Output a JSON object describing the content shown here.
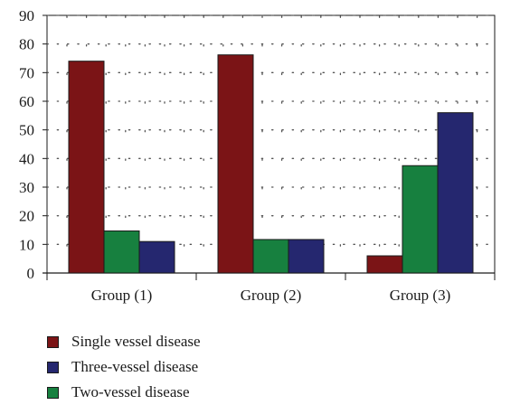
{
  "chart_data": {
    "type": "bar",
    "categories": [
      "Group (1)",
      "Group (2)",
      "Group (3)"
    ],
    "series": [
      {
        "name": "Single vessel disease",
        "color": "#7b1416",
        "values": [
          74,
          76.2,
          6
        ]
      },
      {
        "name": "Two-vessel disease",
        "color": "#17803f",
        "values": [
          14.7,
          11.7,
          37.5
        ]
      },
      {
        "name": "Three-vessel disease",
        "color": "#25276f",
        "values": [
          11,
          11.7,
          56
        ]
      }
    ],
    "yticks": [
      0,
      10,
      20,
      30,
      40,
      50,
      60,
      70,
      80,
      90
    ],
    "ylim": [
      0,
      90
    ],
    "grid": "dotted",
    "legend": {
      "position": "bottom-left",
      "entries": [
        {
          "label": "Single vessel disease",
          "color": "#7b1416"
        },
        {
          "label": "Three-vessel disease",
          "color": "#25276f"
        },
        {
          "label": "Two-vessel disease",
          "color": "#17803f"
        }
      ]
    }
  }
}
